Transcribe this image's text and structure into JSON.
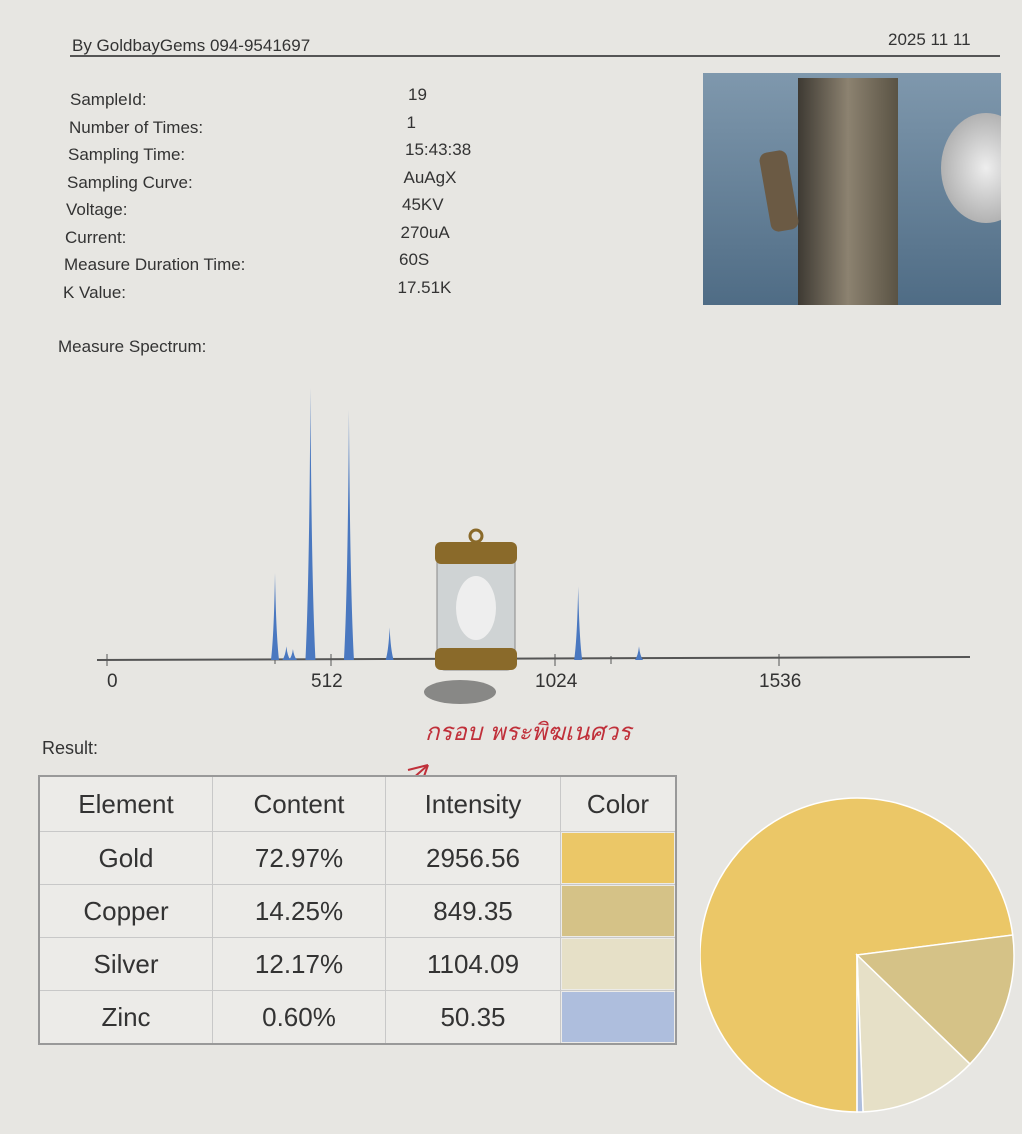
{
  "header": {
    "brand": "By GoldbayGems 094-9541697",
    "date": "2025 11 11"
  },
  "info": [
    {
      "label": "SampleId:",
      "value": "19"
    },
    {
      "label": "Number of Times:",
      "value": "1"
    },
    {
      "label": "Sampling Time:",
      "value": "15:43:38"
    },
    {
      "label": "Sampling Curve:",
      "value": "AuAgX"
    },
    {
      "label": "Voltage:",
      "value": "45KV"
    },
    {
      "label": "Current:",
      "value": "270uA"
    },
    {
      "label": "Measure Duration Time:",
      "value": "60S"
    },
    {
      "label": "K Value:",
      "value": "17.51K"
    }
  ],
  "spectrum": {
    "title": "Measure Spectrum:",
    "x_ticks": [
      "0",
      "512",
      "1024",
      "1536"
    ]
  },
  "chart_data": [
    {
      "type": "line",
      "title": "Measure Spectrum:",
      "xlim": [
        0,
        2048
      ],
      "x_ticks": [
        0,
        512,
        1024,
        1536
      ],
      "peaks": [
        {
          "x": 384,
          "y": 0.32
        },
        {
          "x": 410,
          "y": 0.05
        },
        {
          "x": 425,
          "y": 0.04
        },
        {
          "x": 465,
          "y": 1.0
        },
        {
          "x": 553,
          "y": 0.92
        },
        {
          "x": 646,
          "y": 0.12
        },
        {
          "x": 1077,
          "y": 0.27
        },
        {
          "x": 1216,
          "y": 0.05
        }
      ],
      "color": "#4a78c0"
    },
    {
      "type": "pie",
      "slices": [
        {
          "label": "Gold",
          "value": 72.97,
          "color": "#ebc767"
        },
        {
          "label": "Copper",
          "value": 14.25,
          "color": "#d5c287"
        },
        {
          "label": "Silver",
          "value": 12.17,
          "color": "#e6e0c7"
        },
        {
          "label": "Zinc",
          "value": 0.6,
          "color": "#aebedd"
        }
      ]
    }
  ],
  "result": {
    "title": "Result:",
    "headers": [
      "Element",
      "Content",
      "Intensity",
      "Color"
    ],
    "rows": [
      {
        "element": "Gold",
        "content": "72.97%",
        "intensity": "2956.56",
        "color": "#ebc767"
      },
      {
        "element": "Copper",
        "content": "14.25%",
        "intensity": "849.35",
        "color": "#d5c287"
      },
      {
        "element": "Silver",
        "content": "12.17%",
        "intensity": "1104.09",
        "color": "#e6e0c7"
      },
      {
        "element": "Zinc",
        "content": "0.60%",
        "intensity": "50.35",
        "color": "#aebedd"
      }
    ]
  },
  "annotation": {
    "text": "กรอบ พระพิฆเนศวร",
    "color": "#c0303a"
  }
}
